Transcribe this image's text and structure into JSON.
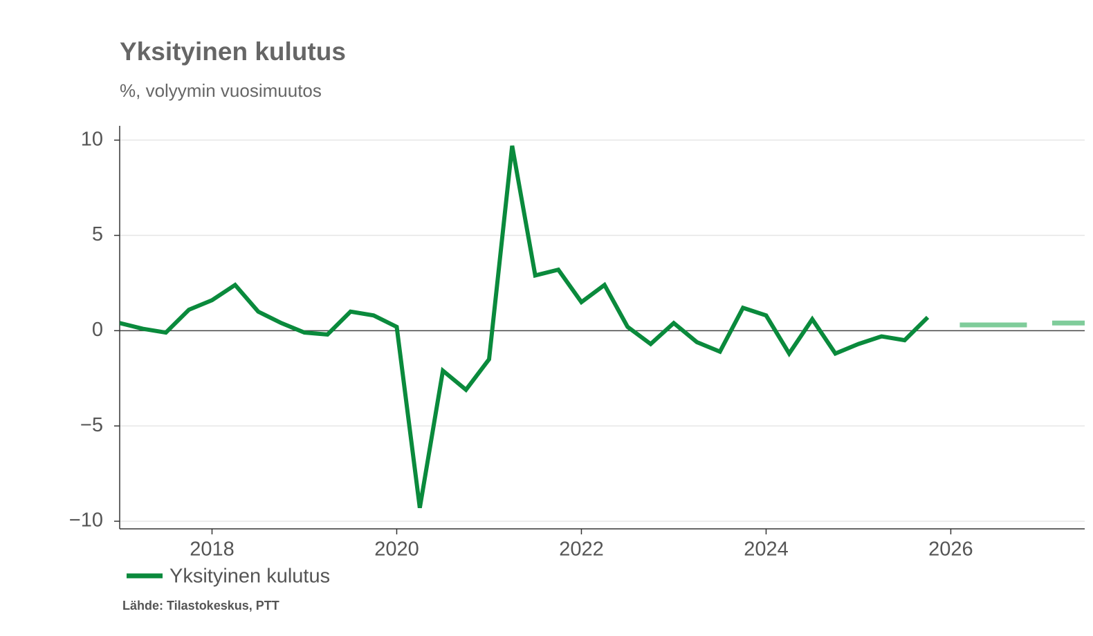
{
  "chart_data": {
    "type": "line",
    "title": "Yksityinen kulutus",
    "subtitle": "%, volyymin vuosimuutos",
    "source": "Lähde: Tilastokeskus, PTT",
    "series": [
      {
        "name": "Yksityinen kulutus",
        "color": "#0a8a3c",
        "x": [
          2017,
          2017.25,
          2017.5,
          2017.75,
          2018,
          2018.25,
          2018.5,
          2018.75,
          2019,
          2019.25,
          2019.5,
          2019.75,
          2020,
          2020.25,
          2020.5,
          2020.75,
          2021,
          2021.25,
          2021.5,
          2021.75,
          2022,
          2022.25,
          2022.5,
          2022.75,
          2023,
          2023.25,
          2023.5,
          2023.75,
          2024,
          2024.25,
          2024.5,
          2024.75,
          2025,
          2025.25,
          2025.5,
          2025.75
        ],
        "values": [
          0.4,
          0.1,
          -0.1,
          1.1,
          1.6,
          2.4,
          1.0,
          0.4,
          -0.1,
          -0.2,
          1.0,
          0.8,
          0.2,
          -9.3,
          -2.1,
          -3.1,
          -1.5,
          9.7,
          2.9,
          3.2,
          1.5,
          2.4,
          0.2,
          -0.7,
          0.4,
          -0.6,
          -1.1,
          1.2,
          0.8,
          -1.2,
          0.6,
          -1.2,
          -0.7,
          -0.3,
          -0.5,
          0.7
        ]
      }
    ],
    "forecast": {
      "color": "#7fcc9a",
      "x": [
        2026,
        2027
      ],
      "values": [
        0.3,
        0.4
      ]
    },
    "xlim": [
      2017,
      2027.45
    ],
    "ylim": [
      -10.4,
      10.75
    ],
    "xticks": [
      2018,
      2020,
      2022,
      2024,
      2026
    ],
    "yticks": [
      {
        "value": -10,
        "label": "−10"
      },
      {
        "value": -5,
        "label": "−5"
      },
      0,
      5,
      10
    ],
    "grid": true
  }
}
